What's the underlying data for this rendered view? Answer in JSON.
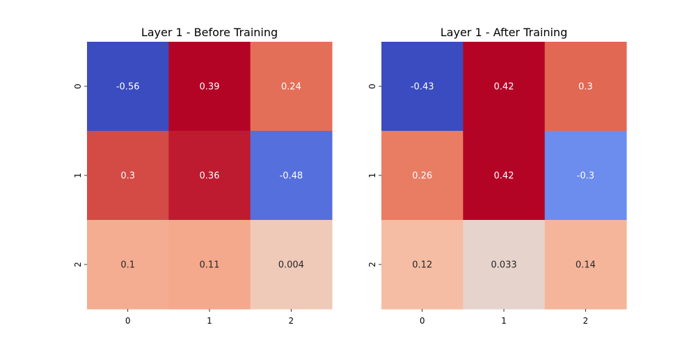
{
  "chart_data": [
    {
      "type": "heatmap",
      "title": "Layer 1 - Before Training",
      "x_ticks": [
        "0",
        "1",
        "2"
      ],
      "y_ticks": [
        "0",
        "1",
        "2"
      ],
      "values": [
        [
          -0.56,
          0.39,
          0.24
        ],
        [
          0.3,
          0.36,
          -0.48
        ],
        [
          0.1,
          0.11,
          0.004
        ]
      ],
      "labels": [
        [
          "-0.56",
          "0.39",
          "0.24"
        ],
        [
          "0.3",
          "0.36",
          "-0.48"
        ],
        [
          "0.1",
          "0.11",
          "0.004"
        ]
      ],
      "colormap": "coolwarm",
      "colorbar": false
    },
    {
      "type": "heatmap",
      "title": "Layer 1 - After Training",
      "x_ticks": [
        "0",
        "1",
        "2"
      ],
      "y_ticks": [
        "0",
        "1",
        "2"
      ],
      "values": [
        [
          -0.43,
          0.42,
          0.3
        ],
        [
          0.26,
          0.42,
          -0.3
        ],
        [
          0.12,
          0.033,
          0.14
        ]
      ],
      "labels": [
        [
          "-0.43",
          "0.42",
          "0.3"
        ],
        [
          "0.26",
          "0.42",
          "-0.3"
        ],
        [
          "0.12",
          "0.033",
          "0.14"
        ]
      ],
      "colormap": "coolwarm",
      "colorbar": false
    }
  ]
}
